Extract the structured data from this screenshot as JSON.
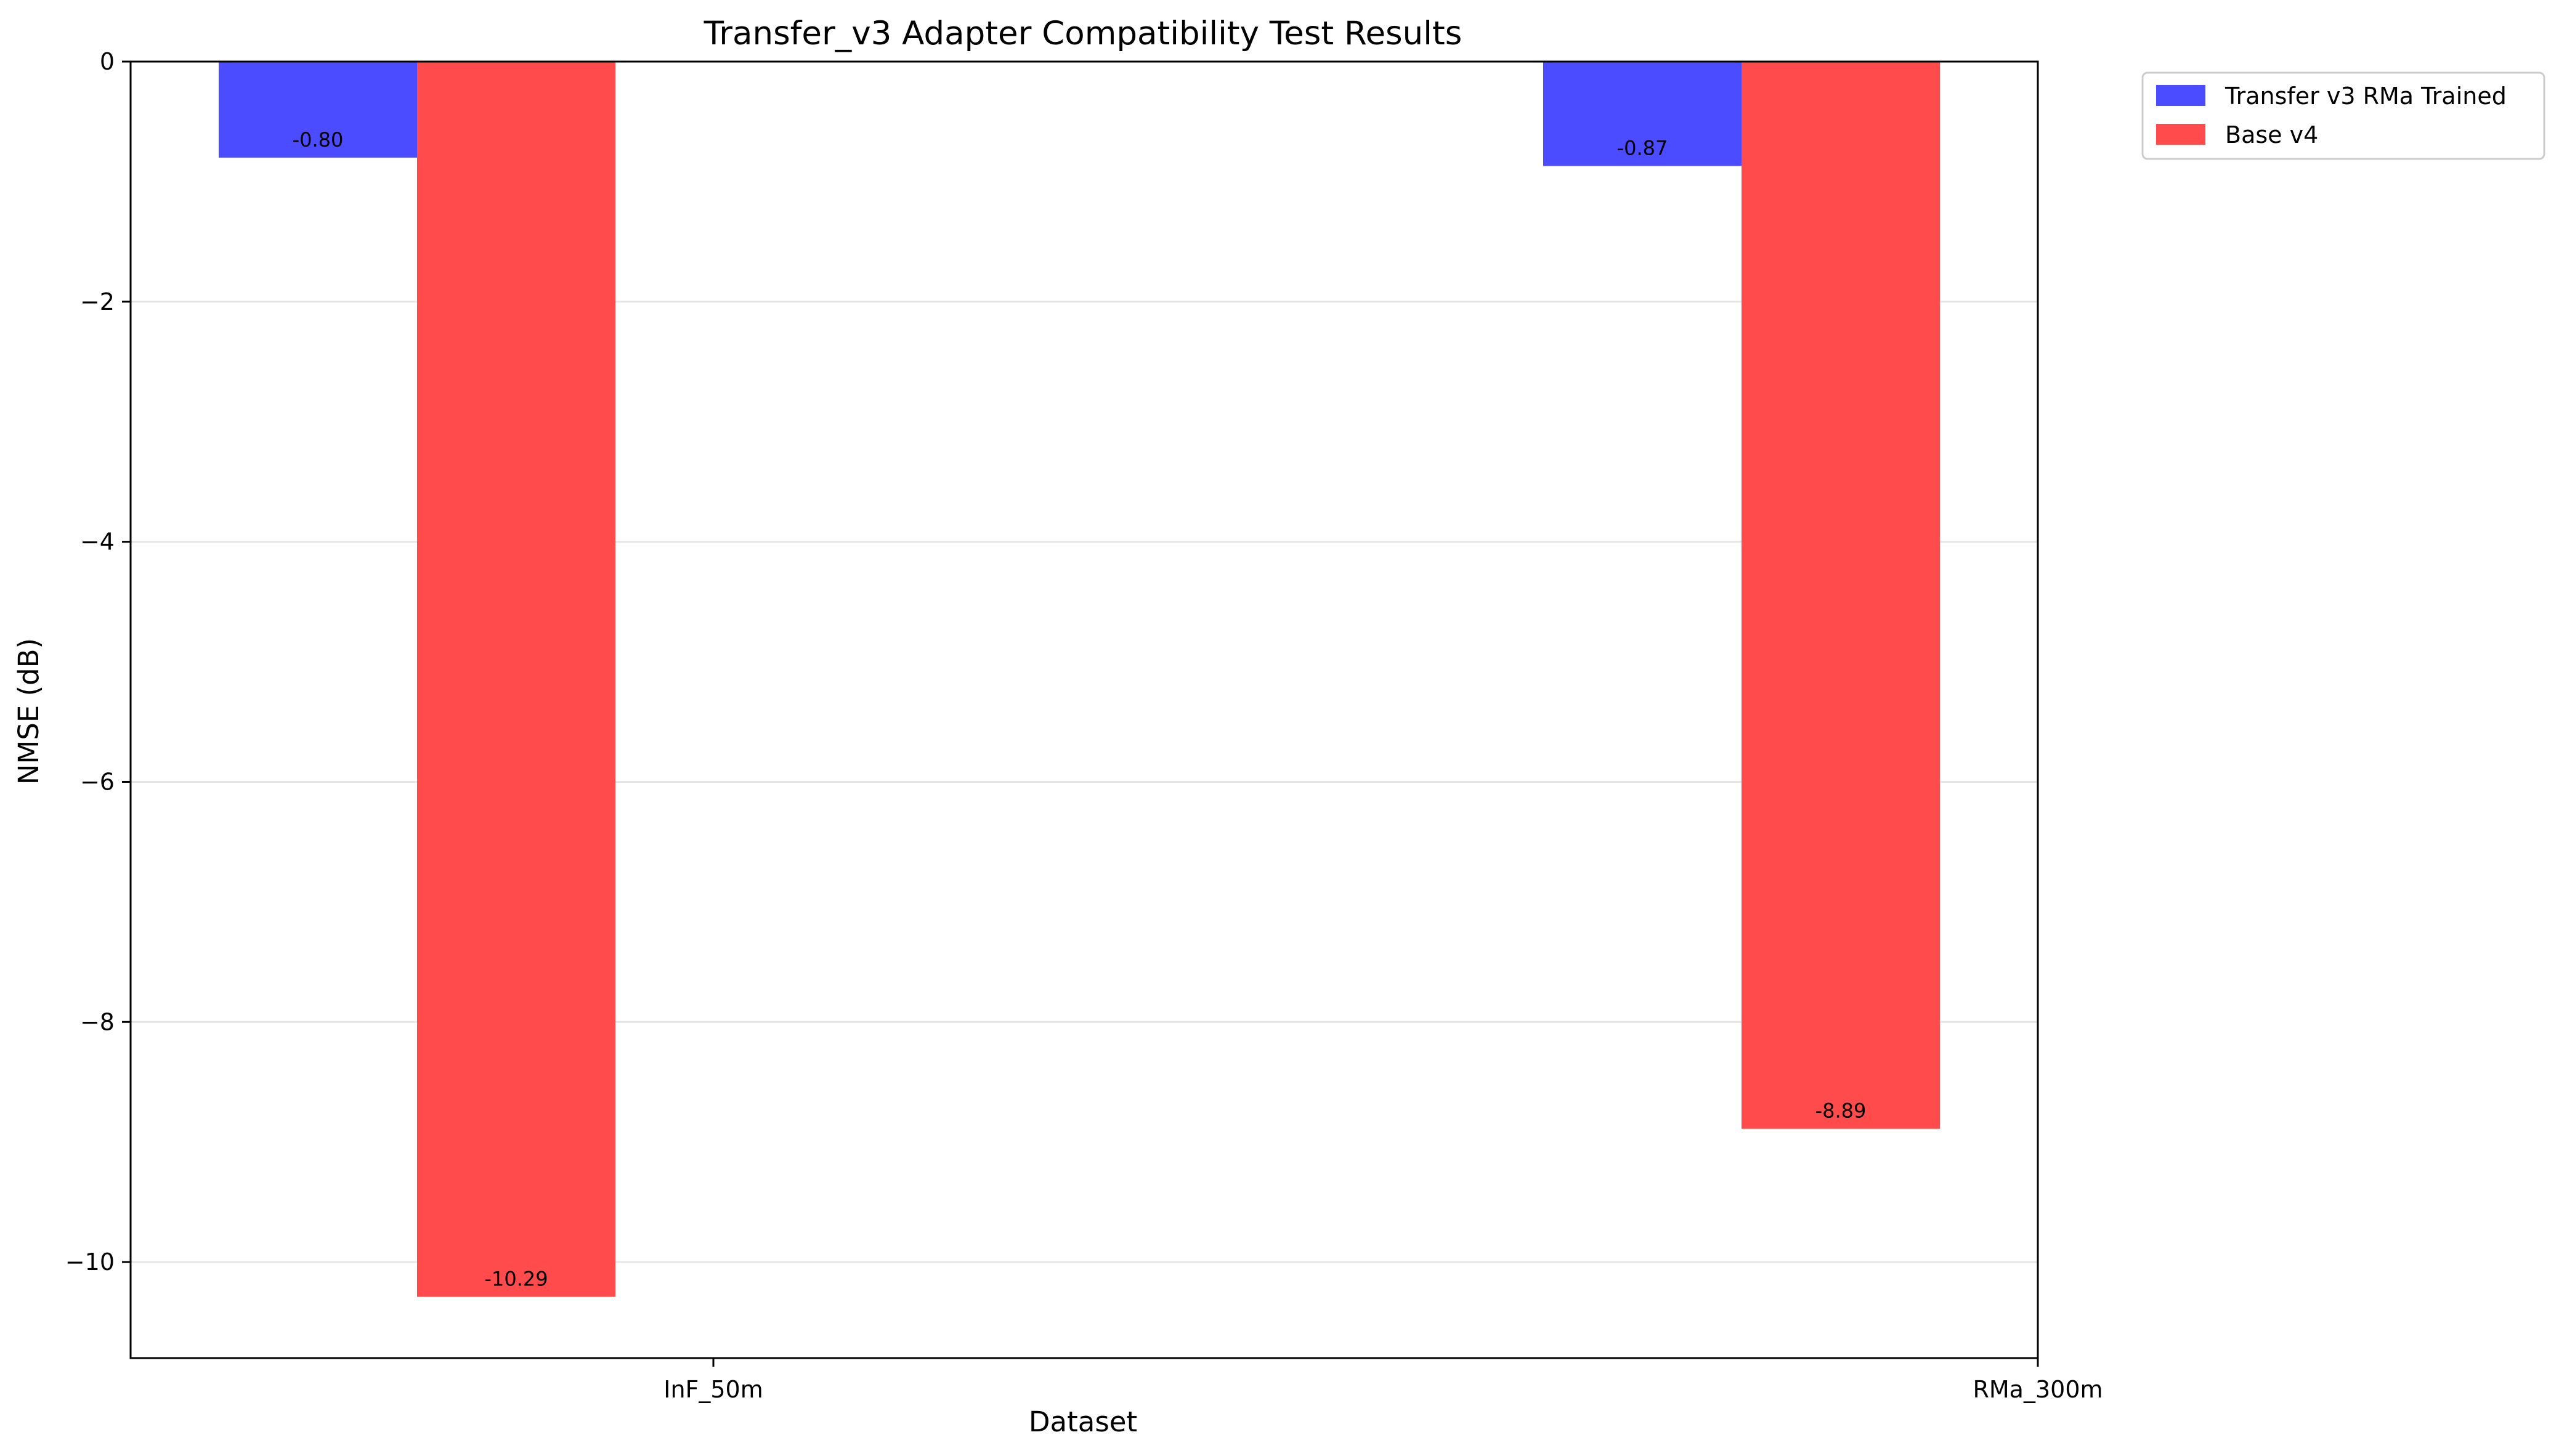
{
  "chart_data": {
    "type": "bar",
    "title": "Transfer_v3 Adapter Compatibility Test Results",
    "xlabel": "Dataset",
    "ylabel": "NMSE (dB)",
    "categories": [
      "InF_50m",
      "RMa_300m"
    ],
    "series": [
      {
        "name": "Transfer v3 RMa Trained",
        "color": "#4b4bff",
        "values": [
          -0.8,
          -0.87
        ],
        "labels": [
          "-0.80",
          "-0.87"
        ]
      },
      {
        "name": "Base v4",
        "color": "#ff4b4b",
        "values": [
          -10.29,
          -8.89
        ],
        "labels": [
          "-10.29",
          "-8.89"
        ]
      }
    ],
    "ylim": [
      -10.8,
      0
    ],
    "yticks": [
      0,
      -2,
      -4,
      -6,
      -8,
      -10
    ],
    "ytick_labels": [
      "0",
      "−2",
      "−4",
      "−6",
      "−8",
      "−10"
    ],
    "grid": "y",
    "legend_position": "outside-top-right"
  }
}
